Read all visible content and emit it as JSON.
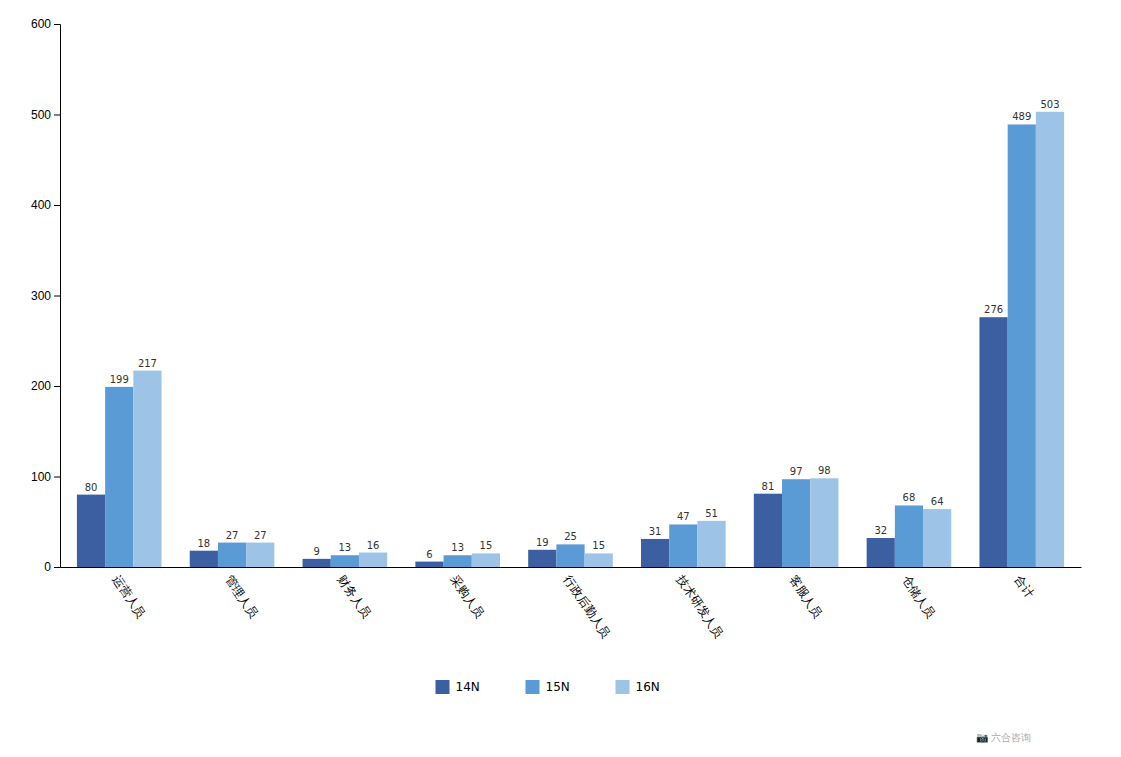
{
  "chart_data": {
    "type": "bar",
    "categories": [
      "运营人员",
      "管理人员",
      "财务人员",
      "采购人员",
      "行政后勤人员",
      "技术研发人员",
      "客服人员",
      "仓储人员",
      "合计"
    ],
    "series": [
      {
        "name": "14N",
        "color": "#3B5FA0",
        "values": [
          80,
          18,
          9,
          6,
          19,
          31,
          81,
          32,
          276
        ]
      },
      {
        "name": "15N",
        "color": "#5B9BD5",
        "values": [
          199,
          27,
          13,
          13,
          25,
          47,
          97,
          68,
          489
        ]
      },
      {
        "name": "16N",
        "color": "#9DC3E6",
        "values": [
          217,
          27,
          16,
          15,
          15,
          51,
          98,
          64,
          503
        ]
      }
    ],
    "ylim": [
      0,
      600
    ],
    "yticks": [
      0,
      100,
      200,
      300,
      400,
      500,
      600
    ],
    "grid": false,
    "legend": "bottom",
    "data_labels": true,
    "annotations": [
      "📷 六合咨询"
    ]
  }
}
